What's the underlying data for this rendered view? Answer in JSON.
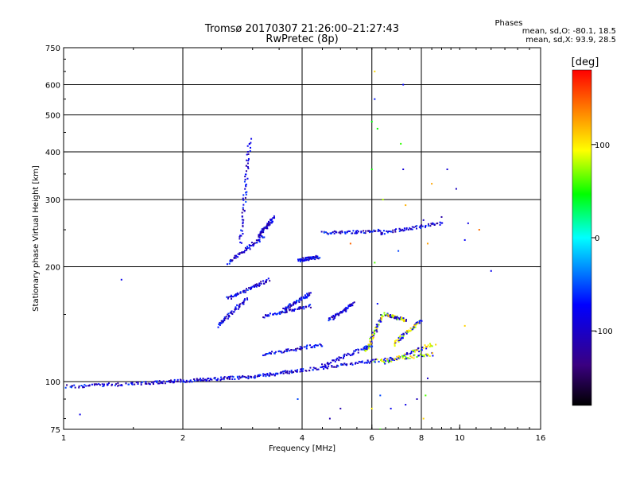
{
  "chart_data": {
    "type": "scatter",
    "title": "Tromsø 20170307 21:26:00–21:27:43",
    "subtitle": "RwPretec (8p)",
    "xlabel": "Frequency [MHz]",
    "ylabel": "Stationary phase Virtual Height [km]",
    "x_scale": "log",
    "y_scale": "log",
    "xlim": [
      1,
      16
    ],
    "ylim": [
      75,
      750
    ],
    "x_ticks": [
      1,
      2,
      4,
      6,
      8,
      10,
      16
    ],
    "y_ticks": [
      75,
      100,
      200,
      300,
      400,
      500,
      600,
      750
    ],
    "x_gridlines": [
      2,
      4,
      6,
      8
    ],
    "y_gridlines": [
      100,
      200,
      300,
      400,
      500,
      600
    ],
    "grid": true,
    "phases_header": "Phases",
    "phases_o": "mean, sd,O: -80.1, 18.5",
    "phases_x": "mean, sd,X: 93.9, 28.5",
    "colorbar": {
      "label": "[deg]",
      "ticks": [
        100,
        0,
        -100
      ],
      "range": [
        -180,
        180
      ]
    },
    "traces": [
      {
        "x": [
          1.02,
          1.6
        ],
        "y": [
          97,
          99
        ]
      },
      {
        "x": [
          1.6,
          2.2
        ],
        "y": [
          99,
          101
        ]
      },
      {
        "x": [
          2.2,
          3.0
        ],
        "y": [
          101,
          103
        ]
      },
      {
        "x": [
          3.0,
          4.0
        ],
        "y": [
          103,
          107
        ]
      },
      {
        "x": [
          4.0,
          6.0
        ],
        "y": [
          107,
          113
        ]
      },
      {
        "x": [
          4.5,
          6.0
        ],
        "y": [
          110,
          125
        ]
      },
      {
        "x": [
          6.0,
          8.6
        ],
        "y": [
          113,
          118
        ]
      },
      {
        "x": [
          6.5,
          8.5
        ],
        "y": [
          112,
          125
        ]
      },
      {
        "x": [
          6.8,
          8.0
        ],
        "y": [
          125,
          145
        ]
      },
      {
        "x": [
          2.6,
          3.2
        ],
        "y": [
          205,
          240
        ]
      },
      {
        "x": [
          2.8,
          2.95
        ],
        "y": [
          230,
          430
        ]
      },
      {
        "x": [
          2.45,
          2.9
        ],
        "y": [
          140,
          165
        ]
      },
      {
        "x": [
          2.6,
          3.3
        ],
        "y": [
          165,
          185
        ]
      },
      {
        "x": [
          3.2,
          4.2
        ],
        "y": [
          148,
          158
        ]
      },
      {
        "x": [
          3.6,
          4.2
        ],
        "y": [
          155,
          170
        ]
      },
      {
        "x": [
          3.1,
          3.4
        ],
        "y": [
          240,
          270
        ]
      },
      {
        "x": [
          3.9,
          4.4
        ],
        "y": [
          208,
          212
        ]
      },
      {
        "x": [
          4.5,
          6.3
        ],
        "y": [
          245,
          248
        ]
      },
      {
        "x": [
          6.3,
          9.0
        ],
        "y": [
          245,
          260
        ]
      },
      {
        "x": [
          3.2,
          4.5
        ],
        "y": [
          118,
          125
        ]
      },
      {
        "x": [
          4.7,
          5.4
        ],
        "y": [
          145,
          160
        ]
      },
      {
        "x": [
          5.8,
          6.4
        ],
        "y": [
          120,
          150
        ]
      },
      {
        "x": [
          6.5,
          7.3
        ],
        "y": [
          150,
          145
        ]
      }
    ],
    "scatter": [
      {
        "x": 6.1,
        "y": 650
      },
      {
        "x": 6.1,
        "y": 550
      },
      {
        "x": 7.2,
        "y": 600
      },
      {
        "x": 6.0,
        "y": 480
      },
      {
        "x": 6.2,
        "y": 460
      },
      {
        "x": 7.1,
        "y": 420
      },
      {
        "x": 6.0,
        "y": 360
      },
      {
        "x": 7.2,
        "y": 360
      },
      {
        "x": 8.5,
        "y": 330
      },
      {
        "x": 9.8,
        "y": 320
      },
      {
        "x": 9.3,
        "y": 360
      },
      {
        "x": 6.4,
        "y": 300
      },
      {
        "x": 7.3,
        "y": 290
      },
      {
        "x": 8.1,
        "y": 265
      },
      {
        "x": 9.0,
        "y": 270
      },
      {
        "x": 10.5,
        "y": 260
      },
      {
        "x": 11.2,
        "y": 250
      },
      {
        "x": 12.0,
        "y": 195
      },
      {
        "x": 10.3,
        "y": 235
      },
      {
        "x": 7.0,
        "y": 220
      },
      {
        "x": 8.3,
        "y": 230
      },
      {
        "x": 5.3,
        "y": 230
      },
      {
        "x": 6.1,
        "y": 205
      },
      {
        "x": 1.4,
        "y": 185
      },
      {
        "x": 6.3,
        "y": 145
      },
      {
        "x": 6.2,
        "y": 160
      },
      {
        "x": 8.7,
        "y": 125
      },
      {
        "x": 10.3,
        "y": 140
      },
      {
        "x": 8.3,
        "y": 102
      },
      {
        "x": 8.2,
        "y": 92
      },
      {
        "x": 7.8,
        "y": 90
      },
      {
        "x": 6.3,
        "y": 92
      },
      {
        "x": 6.0,
        "y": 85
      },
      {
        "x": 6.7,
        "y": 85
      },
      {
        "x": 7.3,
        "y": 87
      },
      {
        "x": 8.1,
        "y": 80
      },
      {
        "x": 5.0,
        "y": 85
      },
      {
        "x": 4.7,
        "y": 80
      },
      {
        "x": 6.3,
        "y": 75
      },
      {
        "x": 1.1,
        "y": 82
      },
      {
        "x": 3.9,
        "y": 90
      }
    ]
  }
}
